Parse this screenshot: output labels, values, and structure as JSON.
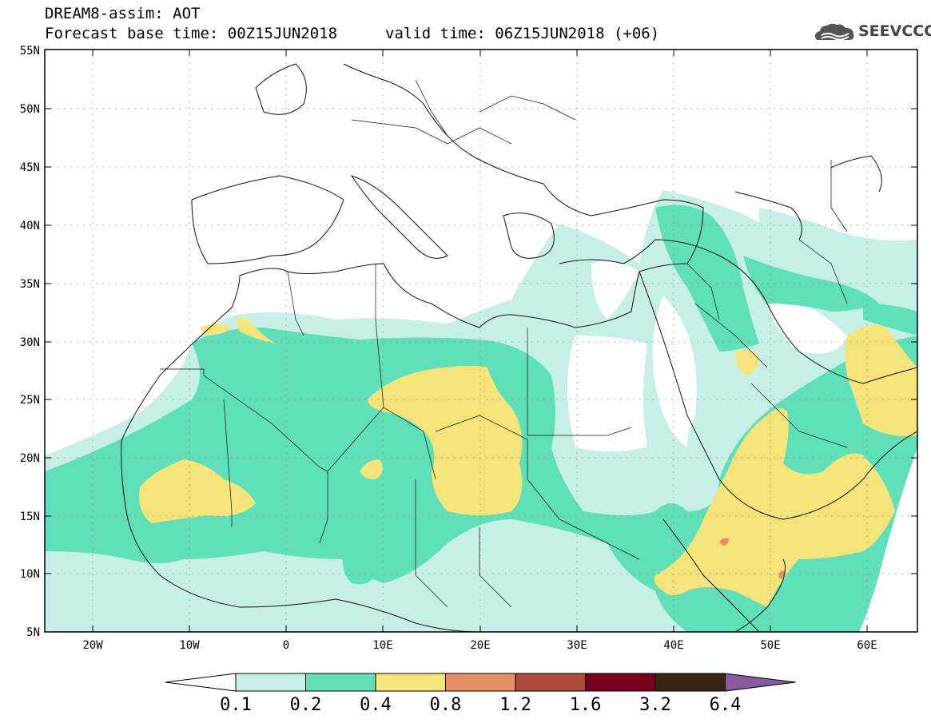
{
  "header": {
    "title": "DREAM8-assim: AOT",
    "forecast_base": "Forecast base time: 00Z15JUN2018",
    "valid_time": "valid time: 06Z15JUN2018 (+06)",
    "logo_text": "SEEVCCC",
    "logo_icon": "cloud-icon"
  },
  "axes": {
    "lat_labels": [
      "55N",
      "50N",
      "45N",
      "40N",
      "35N",
      "30N",
      "25N",
      "20N",
      "15N",
      "10N",
      "5N"
    ],
    "lon_labels": [
      "20W",
      "10W",
      "0",
      "10E",
      "20E",
      "30E",
      "40E",
      "50E",
      "60E"
    ],
    "lat_range": [
      5,
      55
    ],
    "lon_range": [
      -25,
      65
    ]
  },
  "colorbar": {
    "labels": [
      "0.1",
      "0.2",
      "0.4",
      "0.8",
      "1.2",
      "1.6",
      "3.2",
      "6.4"
    ],
    "colors": [
      "#c6f0e6",
      "#5fe0b8",
      "#f5e47a",
      "#e88f66",
      "#b04a3c",
      "#7a0020",
      "#3a2414",
      "#8a5a9e"
    ],
    "lower_arrow_color": "#ffffff",
    "upper_arrow_color": "#8a5a9e"
  },
  "palette": {
    "aot_0_1": "#c6f0e6",
    "aot_0_2": "#5fe0b8",
    "aot_0_4": "#f5e47a",
    "aot_0_8": "#e88f66",
    "aot_1_2": "#b04a3c"
  }
}
